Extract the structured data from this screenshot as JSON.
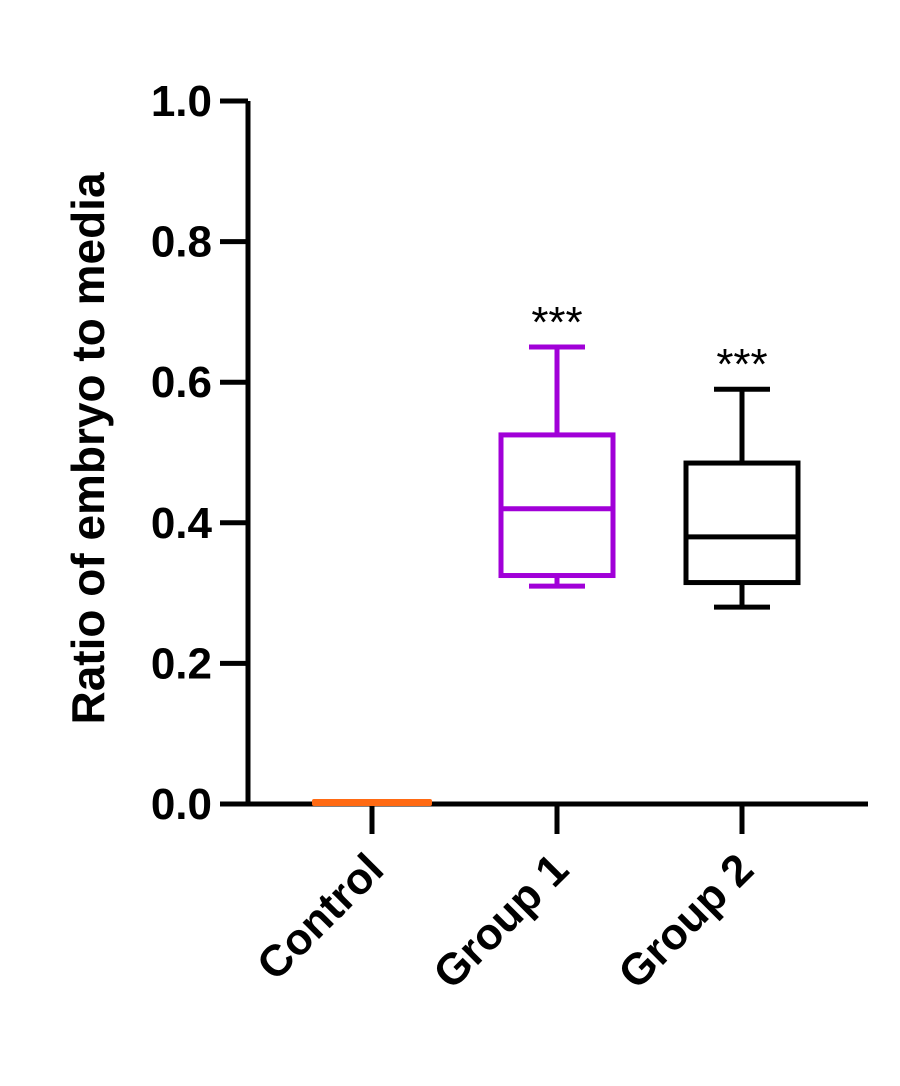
{
  "chart_data": {
    "type": "box",
    "title": "",
    "xlabel": "",
    "ylabel": "Ratio of embryo to media",
    "ylim": [
      0.0,
      1.0
    ],
    "yticks": [
      "0.0",
      "0.2",
      "0.4",
      "0.6",
      "0.8",
      "1.0"
    ],
    "grid": false,
    "categories": [
      "Control",
      "Group 1",
      "Group 2"
    ],
    "boxes": [
      {
        "category": "Control",
        "min": 0.0,
        "q1": 0.0,
        "median": 0.0,
        "q3": 0.0,
        "max": 0.0,
        "color": "#ff6a13",
        "significance": ""
      },
      {
        "category": "Group 1",
        "min": 0.31,
        "q1": 0.325,
        "median": 0.42,
        "q3": 0.525,
        "max": 0.65,
        "color": "#a100d8",
        "significance": "***"
      },
      {
        "category": "Group 2",
        "min": 0.28,
        "q1": 0.315,
        "median": 0.38,
        "q3": 0.485,
        "max": 0.59,
        "color": "#000000",
        "significance": "***"
      }
    ]
  }
}
